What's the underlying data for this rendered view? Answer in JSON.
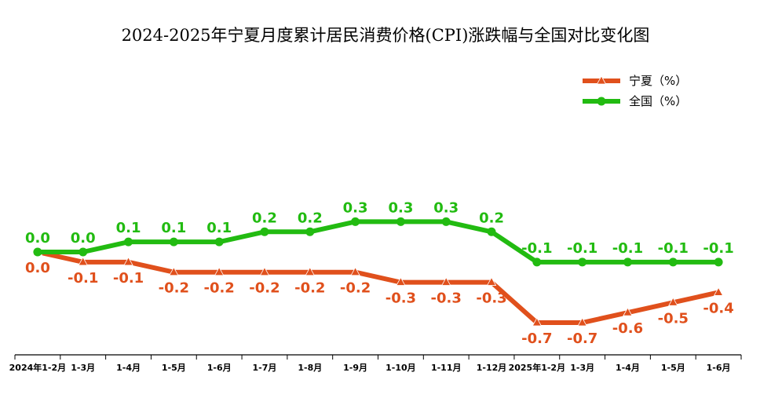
{
  "chart_data": {
    "type": "line",
    "title": "2024-2025年宁夏月度累计居民消费价格(CPI)涨跌幅与全国对比变化图",
    "categories": [
      "2024年1-2月",
      "1-3月",
      "1-4月",
      "1-5月",
      "1-6月",
      "1-7月",
      "1-8月",
      "1-9月",
      "1-10月",
      "1-11月",
      "1-12月",
      "2025年1-2月",
      "1-3月",
      "1-4月",
      "1-5月",
      "1-6月"
    ],
    "series": [
      {
        "name": "宁夏（%）",
        "color": "#e0501c",
        "marker": "triangle",
        "values": [
          0.0,
          -0.1,
          -0.1,
          -0.2,
          -0.2,
          -0.2,
          -0.2,
          -0.2,
          -0.3,
          -0.3,
          -0.3,
          -0.7,
          -0.7,
          -0.6,
          -0.5,
          -0.4
        ]
      },
      {
        "name": "全国（%）",
        "color": "#22bb11",
        "marker": "circle",
        "values": [
          0.0,
          0.0,
          0.1,
          0.1,
          0.1,
          0.2,
          0.2,
          0.3,
          0.3,
          0.3,
          0.2,
          -0.1,
          -0.1,
          -0.1,
          -0.1,
          -0.1
        ]
      }
    ],
    "ylim": [
      -1.0,
      1.0
    ],
    "grid": false,
    "legend": "top-right"
  }
}
